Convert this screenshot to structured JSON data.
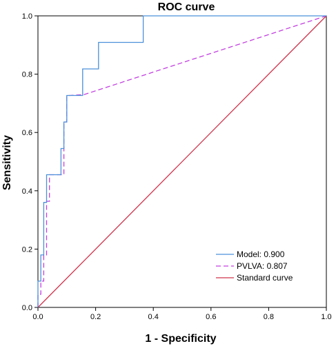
{
  "chart_data": {
    "type": "line",
    "title": "ROC curve",
    "xlabel": "1 - Specificity",
    "ylabel": "Sensitivity",
    "xlim": [
      0,
      1
    ],
    "ylim": [
      0,
      1
    ],
    "xticks": [
      "0.0",
      "0.2",
      "0.4",
      "0.6",
      "0.8",
      "1.0"
    ],
    "yticks": [
      "0.0",
      "0.2",
      "0.4",
      "0.6",
      "0.8",
      "1.0"
    ],
    "grid": false,
    "legend_position": "bottom-right",
    "series": [
      {
        "name": "Model: 0.900",
        "style": "solid",
        "color": "#4a90d9",
        "x": [
          0.0,
          0.0,
          0.01,
          0.01,
          0.02,
          0.02,
          0.03,
          0.03,
          0.08,
          0.08,
          0.09,
          0.09,
          0.1,
          0.1,
          0.155,
          0.155,
          0.21,
          0.21,
          0.365,
          0.365,
          1.0
        ],
        "y": [
          0.0,
          0.09,
          0.09,
          0.18,
          0.18,
          0.36,
          0.36,
          0.455,
          0.455,
          0.545,
          0.545,
          0.636,
          0.636,
          0.727,
          0.727,
          0.818,
          0.818,
          0.909,
          0.909,
          1.0,
          1.0
        ]
      },
      {
        "name": "PVLVA: 0.807",
        "style": "dashed",
        "color": "#c33fe0",
        "x": [
          0.0,
          0.0,
          0.01,
          0.01,
          0.02,
          0.02,
          0.03,
          0.03,
          0.04,
          0.04,
          0.05,
          0.05,
          0.09,
          0.09,
          0.1,
          0.1,
          0.11,
          0.11,
          0.16,
          1.0
        ],
        "y": [
          0.0,
          0.045,
          0.045,
          0.09,
          0.09,
          0.18,
          0.18,
          0.364,
          0.364,
          0.455,
          0.455,
          0.455,
          0.455,
          0.636,
          0.636,
          0.727,
          0.727,
          0.727,
          0.73,
          1.0
        ]
      },
      {
        "name": "Standard curve",
        "style": "solid",
        "color": "#d0324a",
        "x": [
          0.0,
          1.0
        ],
        "y": [
          0.0,
          1.0
        ]
      }
    ]
  }
}
